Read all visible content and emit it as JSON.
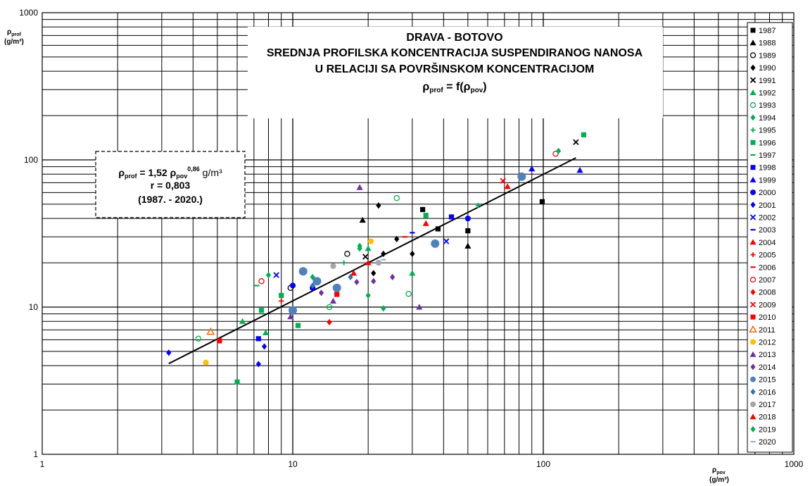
{
  "chart_data": {
    "type": "scatter",
    "title_lines": [
      "DRAVA - BOTOVO",
      "SREDNJA PROFILSKA KONCENTRACIJA SUSPENDIRANOG NANOSA",
      "U RELACIJI SA POVRŠINSKOM KONCENTRACIJOM"
    ],
    "title_formula": {
      "lhs": "ρ",
      "lhs_sub": "prof",
      "mid": " = f(ρ",
      "mid_sub": "pov",
      "end": ")"
    },
    "ylabel": {
      "symbol": "ρ",
      "sub": "prof",
      "unit": "(g/m³)"
    },
    "xlabel": {
      "symbol": "ρ",
      "sub": "pov",
      "unit": "(g/m³)"
    },
    "x_scale": "log",
    "y_scale": "log",
    "xlim": [
      1,
      1000
    ],
    "ylim": [
      1,
      1000
    ],
    "x_ticks": [
      "1",
      "10",
      "100",
      "1000"
    ],
    "y_ticks": [
      "1",
      "10",
      "100",
      "1000"
    ],
    "grid": true,
    "legend_position": "right",
    "equation": {
      "line1_lhs": "ρ",
      "line1_lhs_sub": "prof",
      "line1_mid": " = 1,52 ρ",
      "line1_mid_sub": "pov",
      "line1_exp": "0,86",
      "line1_end": " g/m³",
      "line2": "r = 0,803",
      "line3": "(1987. - 2020.)"
    },
    "regression": {
      "a": 1.52,
      "b": 0.86,
      "x_range": [
        3.2,
        135
      ]
    },
    "series": [
      {
        "name": "1987",
        "color": "#000000",
        "marker": "square",
        "points": [
          [
            33,
            46
          ],
          [
            38,
            34
          ],
          [
            50,
            33
          ],
          [
            99,
            52
          ]
        ]
      },
      {
        "name": "1988",
        "color": "#000000",
        "marker": "triangle",
        "points": [
          [
            19,
            39
          ],
          [
            50,
            26
          ]
        ]
      },
      {
        "name": "1989",
        "color": "#000000",
        "marker": "circle-open",
        "points": [
          [
            16.5,
            23
          ],
          [
            9.8,
            13.5
          ]
        ]
      },
      {
        "name": "1990",
        "color": "#000000",
        "marker": "diamond",
        "points": [
          [
            22,
            49
          ],
          [
            26,
            29
          ],
          [
            30,
            23
          ],
          [
            23,
            23
          ],
          [
            21,
            17
          ]
        ]
      },
      {
        "name": "1991",
        "color": "#000000",
        "marker": "x",
        "points": [
          [
            135,
            132
          ],
          [
            19.5,
            22
          ]
        ]
      },
      {
        "name": "1992",
        "color": "#00b050",
        "marker": "triangle",
        "points": [
          [
            6.3,
            8
          ],
          [
            7.8,
            6.7
          ],
          [
            30,
            17
          ],
          [
            20,
            25
          ]
        ]
      },
      {
        "name": "1993",
        "color": "#00b050",
        "marker": "circle-open",
        "points": [
          [
            4.2,
            6.1
          ],
          [
            14,
            10
          ],
          [
            29,
            12.3
          ],
          [
            26,
            55
          ]
        ]
      },
      {
        "name": "1994",
        "color": "#00b050",
        "marker": "diamond",
        "points": [
          [
            8,
            16.5
          ],
          [
            20,
            12
          ],
          [
            23,
            9.8
          ],
          [
            18.5,
            25
          ]
        ]
      },
      {
        "name": "1995",
        "color": "#00b050",
        "marker": "plus",
        "points": [
          [
            55,
            49
          ],
          [
            16,
            20
          ]
        ]
      },
      {
        "name": "1996",
        "color": "#00b050",
        "marker": "square",
        "points": [
          [
            145,
            148
          ],
          [
            6,
            3.1
          ],
          [
            7.5,
            9.5
          ],
          [
            10.5,
            7.5
          ],
          [
            34,
            42
          ],
          [
            9,
            12
          ]
        ]
      },
      {
        "name": "1997",
        "color": "#00b050",
        "marker": "dash",
        "points": [
          [
            7.2,
            14
          ]
        ]
      },
      {
        "name": "1998",
        "color": "#0000ff",
        "marker": "square",
        "points": [
          [
            7.3,
            6.1
          ],
          [
            43,
            41
          ]
        ]
      },
      {
        "name": "1999",
        "color": "#0000ff",
        "marker": "triangle",
        "points": [
          [
            140,
            85
          ],
          [
            90,
            87
          ]
        ]
      },
      {
        "name": "2000",
        "color": "#0000ff",
        "marker": "circle",
        "points": [
          [
            50,
            40
          ],
          [
            10,
            14
          ],
          [
            12,
            13.5
          ]
        ]
      },
      {
        "name": "2001",
        "color": "#0000ff",
        "marker": "diamond",
        "points": [
          [
            3.2,
            4.9
          ],
          [
            7.3,
            4.1
          ],
          [
            7.7,
            5.4
          ]
        ]
      },
      {
        "name": "2002",
        "color": "#0000ff",
        "marker": "x",
        "points": [
          [
            8.6,
            16.5
          ],
          [
            41,
            28
          ]
        ]
      },
      {
        "name": "2003",
        "color": "#0000ff",
        "marker": "dash",
        "points": [
          [
            30,
            32
          ]
        ]
      },
      {
        "name": "2004",
        "color": "#ff0000",
        "marker": "triangle",
        "points": [
          [
            34,
            37
          ],
          [
            72,
            66
          ]
        ]
      },
      {
        "name": "2005",
        "color": "#ff0000",
        "marker": "plus",
        "points": [
          [
            9,
            11
          ]
        ]
      },
      {
        "name": "2006",
        "color": "#ff0000",
        "marker": "dash",
        "points": [
          [
            28,
            30
          ]
        ]
      },
      {
        "name": "2007",
        "color": "#ff0000",
        "marker": "circle-open",
        "points": [
          [
            7.5,
            15
          ],
          [
            112,
            110
          ]
        ]
      },
      {
        "name": "2008",
        "color": "#ff0000",
        "marker": "diamond",
        "points": [
          [
            14,
            7.9
          ]
        ]
      },
      {
        "name": "2009",
        "color": "#ff0000",
        "marker": "x",
        "points": [
          [
            69,
            72
          ]
        ]
      },
      {
        "name": "2010",
        "color": "#ff0000",
        "marker": "square",
        "points": [
          [
            15,
            12.2
          ],
          [
            5.1,
            5.9
          ]
        ]
      },
      {
        "name": "2011",
        "color": "#ff6600",
        "marker": "triangle-open",
        "points": [
          [
            4.7,
            6.8
          ]
        ]
      },
      {
        "name": "2012",
        "color": "#ffc000",
        "marker": "circle",
        "points": [
          [
            4.5,
            4.2
          ],
          [
            20.5,
            28
          ]
        ]
      },
      {
        "name": "2013",
        "color": "#7030a0",
        "marker": "triangle",
        "points": [
          [
            18.5,
            65
          ],
          [
            32,
            10
          ],
          [
            14.5,
            11
          ],
          [
            9.8,
            8.6
          ]
        ]
      },
      {
        "name": "2014",
        "color": "#7030a0",
        "marker": "diamond",
        "points": [
          [
            18,
            14.8
          ],
          [
            25,
            16
          ],
          [
            21,
            15
          ],
          [
            13,
            12.5
          ]
        ]
      },
      {
        "name": "2015",
        "color": "#4f81bd",
        "marker": "circle",
        "points": [
          [
            11,
            17.5
          ],
          [
            37,
            27
          ],
          [
            10,
            9.5
          ],
          [
            82,
            77
          ],
          [
            15,
            13.5
          ],
          [
            12.5,
            15
          ]
        ]
      },
      {
        "name": "2016",
        "color": "#2e75b6",
        "marker": "diamond",
        "points": [
          [
            17,
            16
          ],
          [
            12,
            14
          ]
        ]
      },
      {
        "name": "2017",
        "color": "#a6a6a6",
        "marker": "circle",
        "points": [
          [
            14.5,
            19
          ],
          [
            22,
            20
          ]
        ]
      },
      {
        "name": "2018",
        "color": "#ff0000",
        "marker": "triangle",
        "points": [
          [
            17.5,
            17
          ],
          [
            20,
            20
          ]
        ]
      },
      {
        "name": "2019",
        "color": "#00b050",
        "marker": "diamond",
        "points": [
          [
            115,
            115
          ],
          [
            18.5,
            26
          ],
          [
            12,
            16
          ]
        ]
      },
      {
        "name": "2020",
        "color": "#8db4e2",
        "marker": "dash",
        "points": [
          [
            23,
            21
          ]
        ]
      }
    ]
  }
}
